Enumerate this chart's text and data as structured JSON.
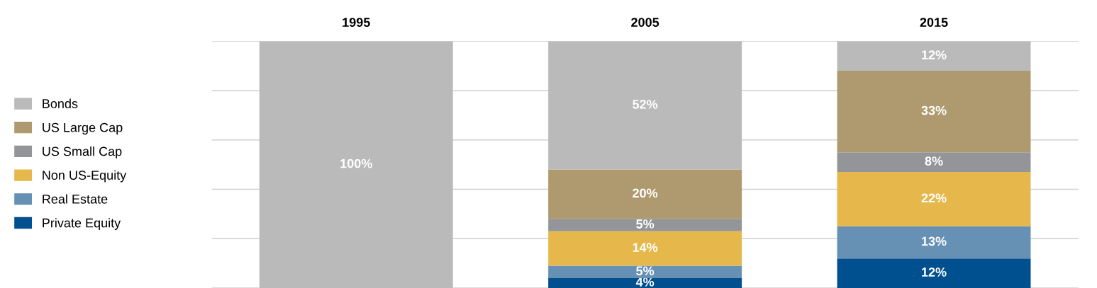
{
  "chart_data": {
    "type": "bar",
    "stacked": true,
    "categories": [
      "1995",
      "2005",
      "2015"
    ],
    "series": [
      {
        "name": "Private Equity",
        "color": "#00508f",
        "values": [
          0,
          4,
          12
        ],
        "value_labels": [
          null,
          "4%",
          "12%"
        ]
      },
      {
        "name": "Real Estate",
        "color": "#6690b4",
        "values": [
          0,
          5,
          13
        ],
        "value_labels": [
          null,
          "5%",
          "13%"
        ]
      },
      {
        "name": "Non US-Equity",
        "color": "#e6b84c",
        "values": [
          0,
          14,
          22
        ],
        "value_labels": [
          null,
          "14%",
          "22%"
        ]
      },
      {
        "name": "US Small Cap",
        "color": "#939598",
        "values": [
          0,
          5,
          8
        ],
        "value_labels": [
          null,
          "5%",
          "8%"
        ]
      },
      {
        "name": "US Large Cap",
        "color": "#ae9a6e",
        "values": [
          0,
          20,
          33
        ],
        "value_labels": [
          null,
          "20%",
          "33%"
        ]
      },
      {
        "name": "Bonds",
        "color": "#bababa",
        "values": [
          100,
          52,
          12
        ],
        "value_labels": [
          "100%",
          "52%",
          "12%"
        ]
      }
    ],
    "ylim": [
      0,
      100
    ],
    "yticks": [
      {
        "value": 0,
        "label": null
      },
      {
        "value": 20,
        "label": null
      },
      {
        "value": 40,
        "label": null
      },
      {
        "value": 60,
        "label": null
      },
      {
        "value": 80,
        "label": null
      },
      {
        "value": 100,
        "label": null
      }
    ],
    "grid": "y",
    "legend": "left",
    "tick_labels": "x"
  }
}
